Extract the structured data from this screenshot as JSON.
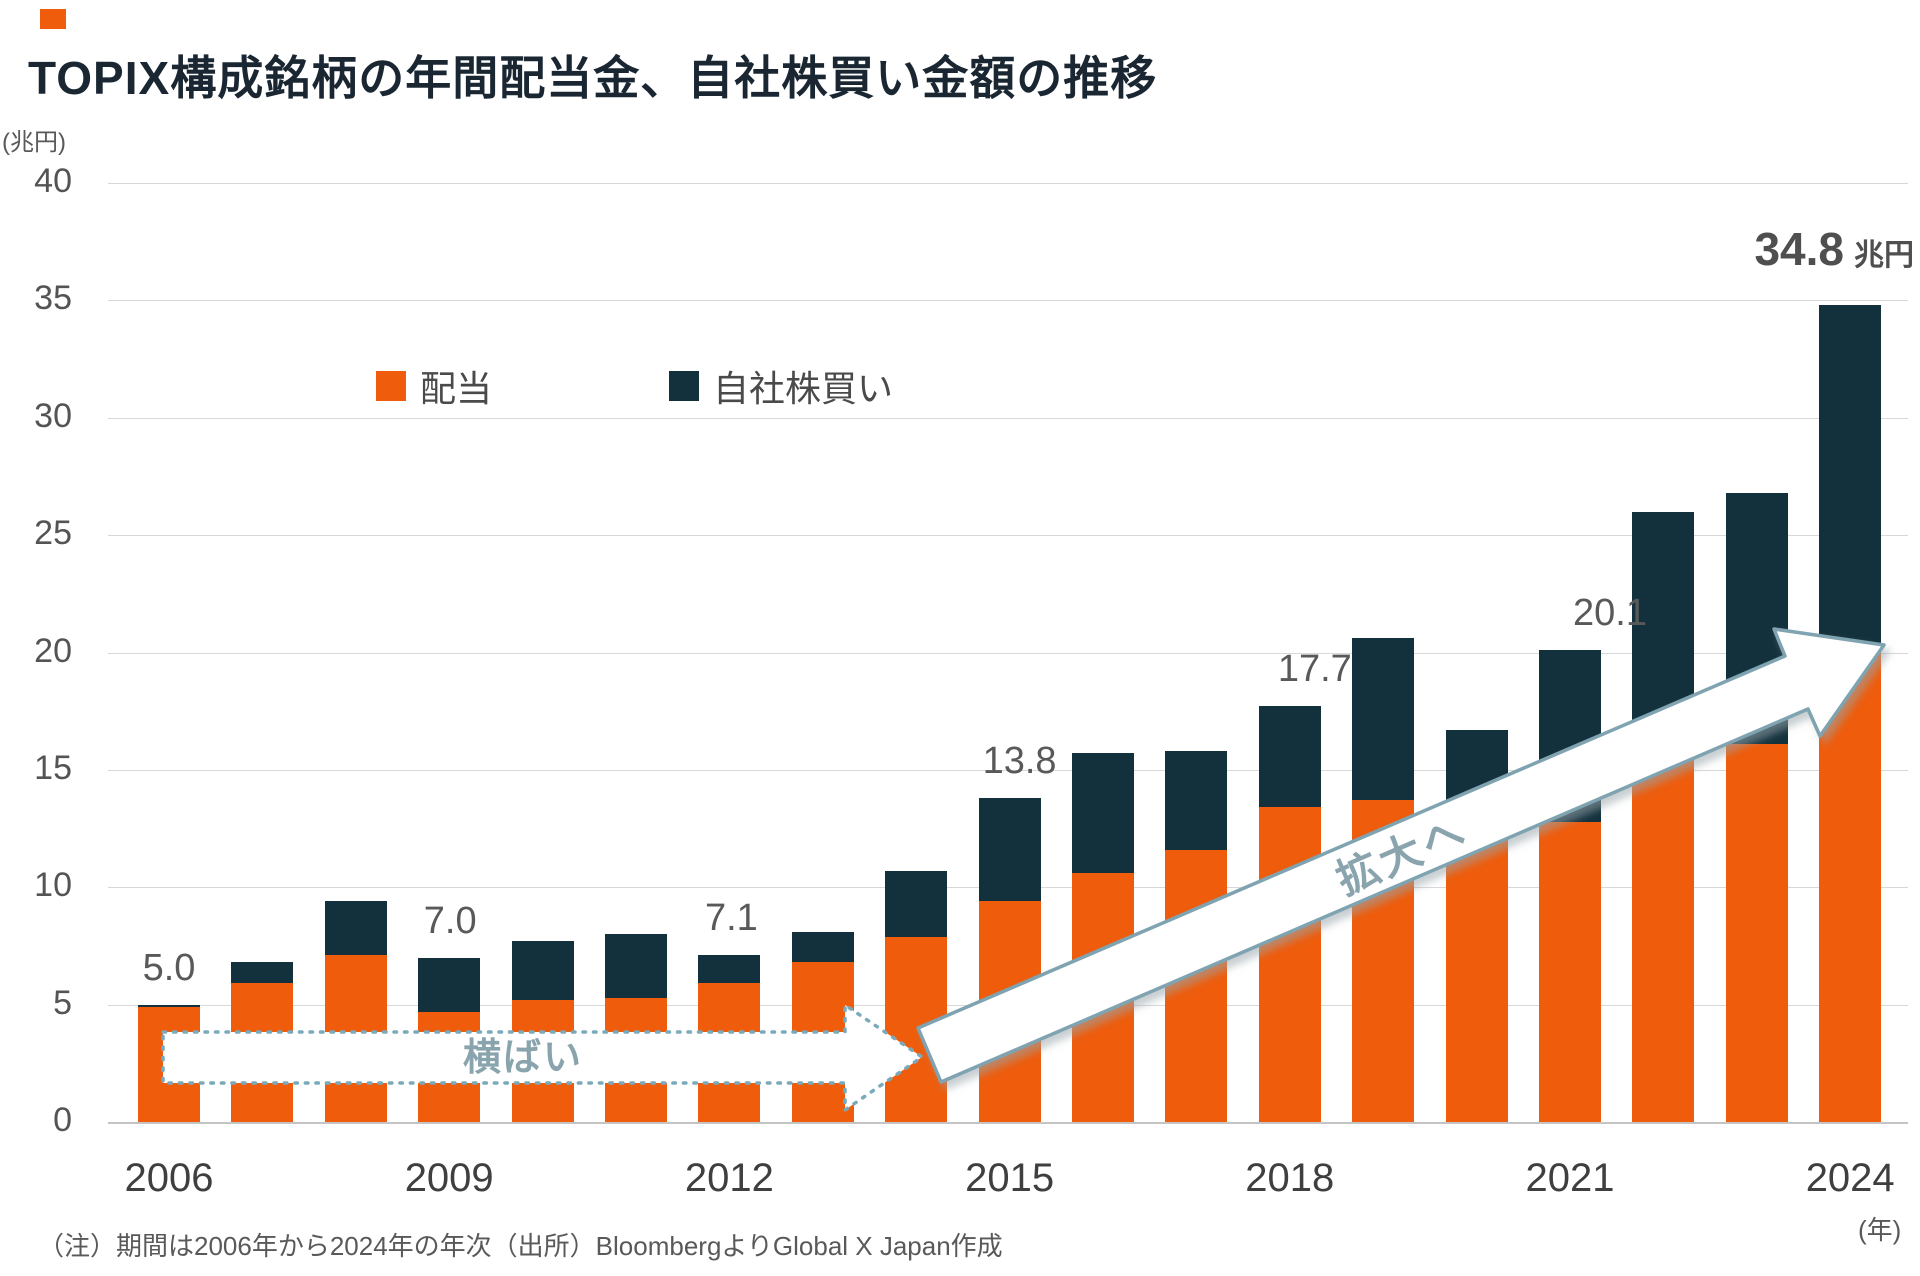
{
  "title": {
    "text": "TOPIX構成銘柄の年間配当金、自社株買い金額の推移"
  },
  "y_axis": {
    "unit_label": "(兆円)",
    "ticks": [
      40,
      35,
      30,
      25,
      20,
      15,
      10,
      5,
      0
    ]
  },
  "x_axis": {
    "tick_years": [
      "2006",
      "2009",
      "2012",
      "2015",
      "2018",
      "2021",
      "2024"
    ],
    "unit_label": "(年)"
  },
  "legend": [
    {
      "label": "配当",
      "color": "#EE5C0C"
    },
    {
      "label": "自社株買い",
      "color": "#13313C"
    }
  ],
  "chart_data": {
    "type": "bar",
    "stacked": true,
    "x": [
      2006,
      2007,
      2008,
      2009,
      2010,
      2011,
      2012,
      2013,
      2014,
      2015,
      2016,
      2017,
      2018,
      2019,
      2020,
      2021,
      2022,
      2023,
      2024
    ],
    "series": [
      {
        "name": "配当",
        "color": "#EE5C0C",
        "values": [
          4.9,
          5.9,
          7.1,
          4.7,
          5.2,
          5.3,
          5.9,
          6.8,
          7.9,
          9.4,
          10.6,
          11.6,
          13.4,
          13.7,
          12.4,
          12.8,
          15.9,
          16.1,
          20.3
        ]
      },
      {
        "name": "自社株買い",
        "color": "#13313C",
        "values": [
          0.1,
          0.9,
          2.3,
          2.3,
          2.5,
          2.7,
          1.2,
          1.3,
          2.8,
          4.4,
          5.1,
          4.2,
          4.3,
          6.9,
          4.3,
          7.3,
          10.1,
          10.7,
          14.5
        ]
      }
    ],
    "totals_labeled": {
      "2006": "5.0",
      "2009": "7.0",
      "2012": "7.1",
      "2015": "13.8",
      "2018": "17.7",
      "2021": "20.1",
      "2024": "34.8"
    },
    "ylim": [
      0,
      40
    ],
    "grid": true,
    "legend_position": "upper-left-inside"
  },
  "annotations": {
    "flat_arrow_label": "横ばい",
    "expand_arrow_label": "拡大へ",
    "final_value": "34.8",
    "final_unit": "兆円"
  },
  "footer": {
    "note": "（注）期間は2006年から2024年の年次（出所）BloombergよりGlobal X Japan作成"
  }
}
